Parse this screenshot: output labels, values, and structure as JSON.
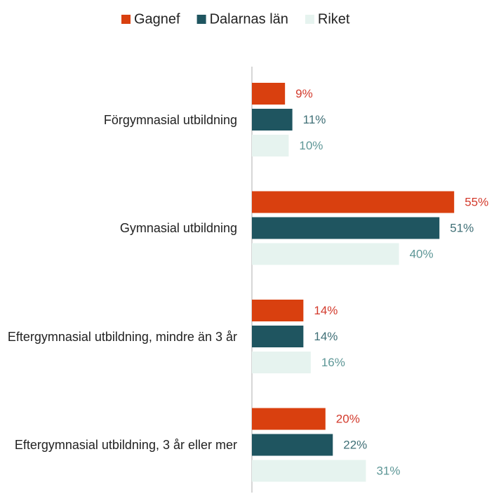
{
  "chart_data": {
    "type": "bar",
    "orientation": "horizontal",
    "categories": [
      "Förgymnasial utbildning",
      "Gymnasial utbildning",
      "Eftergymnasial utbildning, mindre än 3 år",
      "Eftergymnasial utbildning, 3 år eller mer"
    ],
    "series": [
      {
        "name": "Gagnef",
        "color": "#d9400f",
        "label_color": "#d33a2c",
        "values": [
          9,
          55,
          14,
          20
        ],
        "value_labels": [
          "9%",
          "55%",
          "14%",
          "20%"
        ]
      },
      {
        "name": "Dalarnas län",
        "color": "#1f5560",
        "label_color": "#3f6f76",
        "values": [
          11,
          51,
          14,
          22
        ],
        "value_labels": [
          "11%",
          "51%",
          "14%",
          "22%"
        ]
      },
      {
        "name": "Riket",
        "color": "#e6f3ef",
        "label_color": "#5e9797",
        "values": [
          10,
          40,
          16,
          31
        ],
        "value_labels": [
          "10%",
          "40%",
          "16%",
          "31%"
        ]
      }
    ],
    "legend": "top"
  }
}
